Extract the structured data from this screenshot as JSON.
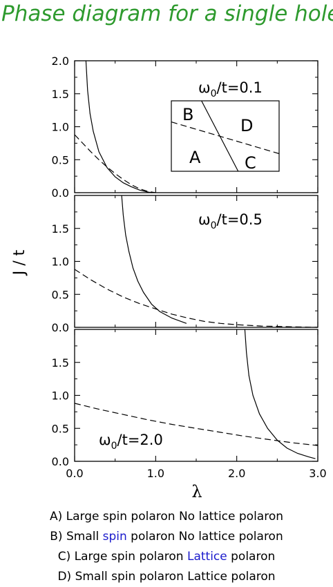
{
  "title": "Phase diagram for a single hole",
  "chart_data": {
    "type": "line",
    "xlabel": "λ",
    "ylabel": "J / t",
    "xlim": [
      0,
      3
    ],
    "ylim": [
      0,
      2
    ],
    "x_ticks": [
      "0.0",
      "1.0",
      "2.0",
      "3.0"
    ],
    "y_ticks_top": [
      "0.0",
      "0.5",
      "1.0",
      "1.5",
      "2.0"
    ],
    "y_ticks_other": [
      "0.0",
      "0.5",
      "1.0",
      "1.5"
    ],
    "panels": [
      {
        "label": "ω0/t=0.1",
        "label_parts": [
          "ω",
          "0",
          "/t=0.1"
        ],
        "series": [
          {
            "style": "solid",
            "x": [
              0.14,
              0.16,
              0.19,
              0.23,
              0.3,
              0.4,
              0.5,
              0.6,
              0.7,
              0.8,
              0.9,
              0.95
            ],
            "y": [
              2.0,
              1.55,
              1.2,
              0.93,
              0.62,
              0.38,
              0.24,
              0.15,
              0.09,
              0.04,
              0.01,
              0.0
            ]
          },
          {
            "style": "dashed",
            "x": [
              0.0,
              0.1,
              0.2,
              0.3,
              0.4,
              0.5,
              0.6,
              0.7,
              0.8,
              0.9,
              1.0
            ],
            "y": [
              0.88,
              0.75,
              0.62,
              0.5,
              0.39,
              0.29,
              0.2,
              0.12,
              0.06,
              0.02,
              0.0
            ]
          }
        ],
        "inset": {
          "regions": [
            "B",
            "D",
            "A",
            "C"
          ],
          "solid_line": {
            "from": [
              0.28,
              1.0
            ],
            "to": [
              0.62,
              0.0
            ]
          },
          "dashed_line": {
            "from": [
              0.0,
              0.7
            ],
            "to": [
              1.0,
              0.25
            ]
          }
        }
      },
      {
        "label": "ω0/t=0.5",
        "label_parts": [
          "ω",
          "0",
          "/t=0.5"
        ],
        "series": [
          {
            "style": "solid",
            "x": [
              0.58,
              0.6,
              0.63,
              0.67,
              0.72,
              0.78,
              0.85,
              0.95,
              1.05,
              1.2,
              1.38
            ],
            "y": [
              2.0,
              1.7,
              1.4,
              1.15,
              0.9,
              0.7,
              0.53,
              0.35,
              0.24,
              0.14,
              0.06
            ]
          },
          {
            "style": "dashed",
            "x": [
              0.0,
              0.2,
              0.4,
              0.6,
              0.8,
              1.0,
              1.2,
              1.4,
              1.6,
              1.8,
              2.0,
              2.3,
              2.6,
              3.0
            ],
            "y": [
              0.88,
              0.72,
              0.58,
              0.46,
              0.36,
              0.28,
              0.2,
              0.14,
              0.09,
              0.06,
              0.04,
              0.02,
              0.01,
              0.0
            ]
          }
        ]
      },
      {
        "label": "ω0/t=2.0",
        "label_parts": [
          "ω",
          "0",
          "/t=2.0"
        ],
        "series": [
          {
            "style": "solid",
            "x": [
              2.1,
              2.12,
              2.15,
              2.2,
              2.28,
              2.38,
              2.5,
              2.62,
              2.75,
              2.88,
              2.97
            ],
            "y": [
              2.0,
              1.65,
              1.3,
              1.0,
              0.72,
              0.5,
              0.32,
              0.2,
              0.12,
              0.07,
              0.04
            ]
          },
          {
            "style": "dashed",
            "x": [
              0.0,
              0.3,
              0.6,
              0.9,
              1.2,
              1.5,
              1.8,
              2.1,
              2.4,
              2.7,
              3.0
            ],
            "y": [
              0.88,
              0.79,
              0.71,
              0.63,
              0.56,
              0.5,
              0.44,
              0.38,
              0.33,
              0.28,
              0.24
            ]
          }
        ]
      }
    ]
  },
  "legend": [
    {
      "parts": [
        {
          "text": "A) Large spin polaron No lattice polaron",
          "hl": false
        }
      ]
    },
    {
      "parts": [
        {
          "text": "B) Small ",
          "hl": false
        },
        {
          "text": "spin",
          "hl": true
        },
        {
          "text": " polaron No lattice polaron",
          "hl": false
        }
      ]
    },
    {
      "parts": [
        {
          "text": "C) Large spin polaron ",
          "hl": false
        },
        {
          "text": "Lattice",
          "hl": true
        },
        {
          "text": " polaron",
          "hl": false
        }
      ]
    },
    {
      "parts": [
        {
          "text": "D) Small spin polaron Lattice polaron",
          "hl": false
        }
      ]
    }
  ],
  "colors": {
    "title": "#2e9a2e",
    "highlight": "#1a1acc",
    "ink": "#000000"
  }
}
